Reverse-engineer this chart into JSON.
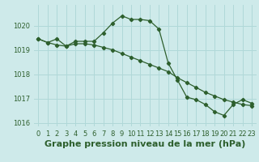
{
  "title": "Graphe pression niveau de la mer (hPa)",
  "background_color": "#ceeaea",
  "grid_color": "#b0d8d8",
  "line_color": "#2d5f2d",
  "xlim": [
    -0.5,
    23.5
  ],
  "ylim": [
    1015.85,
    1020.85
  ],
  "yticks": [
    1016,
    1017,
    1018,
    1019,
    1020
  ],
  "xticks": [
    0,
    1,
    2,
    3,
    4,
    5,
    6,
    7,
    8,
    9,
    10,
    11,
    12,
    13,
    14,
    15,
    16,
    17,
    18,
    19,
    20,
    21,
    22,
    23
  ],
  "line1_x": [
    0,
    1,
    2,
    3,
    4,
    5,
    6,
    7,
    8,
    9,
    10,
    11,
    12,
    13,
    14,
    15,
    16,
    17,
    18,
    19,
    20,
    21,
    22,
    23
  ],
  "line1_y": [
    1019.45,
    1019.3,
    1019.45,
    1019.15,
    1019.35,
    1019.35,
    1019.35,
    1019.7,
    1020.1,
    1020.4,
    1020.25,
    1020.25,
    1020.2,
    1019.85,
    1018.45,
    1017.75,
    1017.05,
    1016.95,
    1016.75,
    1016.45,
    1016.3,
    1016.75,
    1016.95,
    1016.8
  ],
  "line2_x": [
    0,
    1,
    2,
    3,
    4,
    5,
    6,
    7,
    8,
    9,
    10,
    11,
    12,
    13,
    14,
    15,
    16,
    17,
    18,
    19,
    20,
    21,
    22,
    23
  ],
  "line2_y": [
    1019.45,
    1019.3,
    1019.2,
    1019.15,
    1019.25,
    1019.25,
    1019.2,
    1019.1,
    1019.0,
    1018.85,
    1018.7,
    1018.55,
    1018.4,
    1018.25,
    1018.1,
    1017.85,
    1017.65,
    1017.45,
    1017.25,
    1017.1,
    1016.95,
    1016.85,
    1016.75,
    1016.7
  ],
  "title_fontsize": 8,
  "tick_fontsize": 6
}
